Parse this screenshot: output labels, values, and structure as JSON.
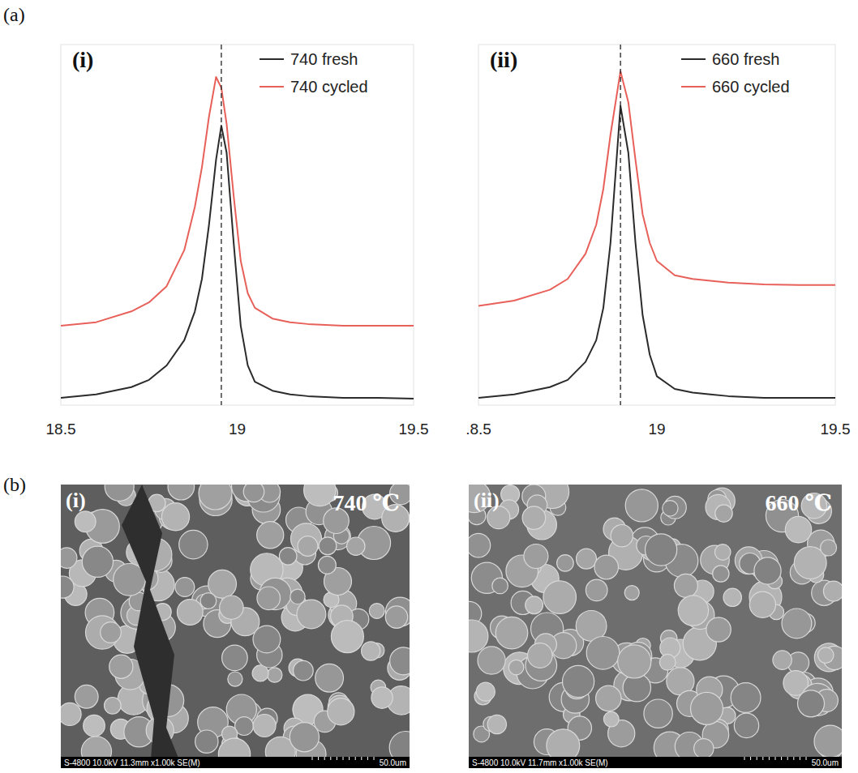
{
  "panels": {
    "a": "(a)",
    "b": "(b)"
  },
  "chart_data": [
    {
      "type": "line",
      "title": "(i)",
      "x": [
        18.5,
        18.6,
        18.7,
        18.75,
        18.8,
        18.85,
        18.88,
        18.9,
        18.92,
        18.94,
        18.955,
        18.97,
        18.99,
        19.01,
        19.03,
        19.05,
        19.1,
        19.15,
        19.2,
        19.3,
        19.4,
        19.5
      ],
      "series": [
        {
          "name": "740 fresh",
          "color": "#2b2b2b",
          "line_style": "solid",
          "values": [
            2,
            3,
            5,
            7,
            11,
            18,
            26,
            35,
            50,
            68,
            77.5,
            70,
            45,
            22,
            11,
            6.5,
            4,
            3,
            2.5,
            2,
            2,
            1.8
          ]
        },
        {
          "name": "740 cycled",
          "color": "#e8605a",
          "line_style": "solid",
          "values": [
            22,
            23,
            26,
            28.5,
            33,
            43,
            55,
            66,
            80,
            91,
            88,
            78,
            58,
            40,
            31,
            27,
            24,
            23,
            22.5,
            22,
            22,
            22
          ]
        }
      ],
      "annotations": [
        {
          "type": "vline",
          "x": 18.955,
          "line_style": "dashed"
        }
      ],
      "xlim": [
        18.5,
        19.5
      ],
      "xticks": [
        18.5,
        19,
        19.5
      ],
      "ylim": [
        0,
        100
      ],
      "tick_labels": "x",
      "grid": false,
      "legend": "upper right"
    },
    {
      "type": "line",
      "title": "(ii)",
      "x": [
        18.5,
        18.6,
        18.7,
        18.75,
        18.8,
        18.83,
        18.85,
        18.87,
        18.898,
        18.92,
        18.94,
        18.96,
        18.98,
        19.0,
        19.05,
        19.1,
        19.15,
        19.2,
        19.3,
        19.4,
        19.5
      ],
      "series": [
        {
          "name": "660 fresh",
          "color": "#2b2b2b",
          "line_style": "solid",
          "values": [
            2,
            3,
            5,
            7,
            12,
            18,
            27,
            45,
            83,
            70,
            45,
            25,
            14,
            8,
            4.5,
            3.5,
            3,
            2.5,
            2,
            2,
            2
          ]
        },
        {
          "name": "660 cycled",
          "color": "#e8605a",
          "line_style": "solid",
          "values": [
            27.5,
            29,
            32,
            35,
            42,
            50,
            60,
            75,
            92.6,
            84,
            68,
            53,
            45,
            40,
            36,
            35,
            34.5,
            34,
            33.5,
            33.3,
            33.3
          ]
        }
      ],
      "annotations": [
        {
          "type": "vline",
          "x": 18.898,
          "line_style": "dashed"
        }
      ],
      "xlim": [
        18.5,
        19.5
      ],
      "xticks": [
        {
          "value": 18.5,
          "label": ".8.5"
        },
        19,
        19.5
      ],
      "ylim": [
        0,
        100
      ],
      "tick_labels": "x",
      "grid": false,
      "legend": "upper right"
    }
  ],
  "sem_images": [
    {
      "label": "(i)",
      "temperature": "740 ℃",
      "info": "S-4800 10.0kV 11.3mm x1.00k SE(M)",
      "scale": "50.0um"
    },
    {
      "label": "(ii)",
      "temperature": "660 ℃",
      "info": "S-4800 10.0kV 11.7mm x1.00k SE(M)",
      "scale": "50.0um"
    }
  ]
}
